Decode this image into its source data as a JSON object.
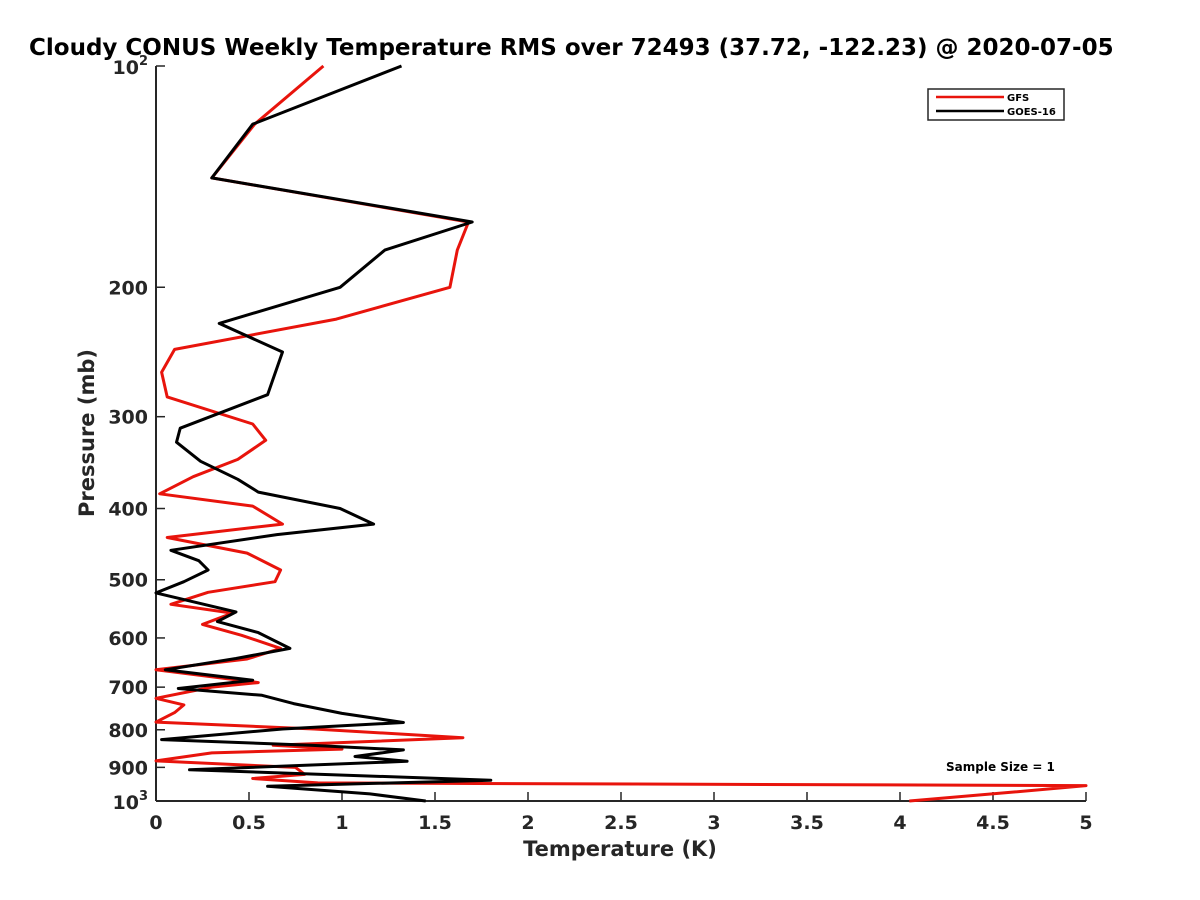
{
  "chart_data": {
    "type": "line",
    "title": "Cloudy CONUS Weekly Temperature RMS over 72493 (37.72, -122.23) @ 2020-07-05",
    "xlabel": "Temperature (K)",
    "ylabel": "Pressure (mb)",
    "xlim": [
      0,
      5
    ],
    "ylim": [
      100,
      1000
    ],
    "y_scale": "log",
    "y_reversed": true,
    "x_ticks": [
      {
        "v": 0,
        "label": "0"
      },
      {
        "v": 0.5,
        "label": "0.5"
      },
      {
        "v": 1,
        "label": "1"
      },
      {
        "v": 1.5,
        "label": "1.5"
      },
      {
        "v": 2,
        "label": "2"
      },
      {
        "v": 2.5,
        "label": "2.5"
      },
      {
        "v": 3,
        "label": "3"
      },
      {
        "v": 3.5,
        "label": "3.5"
      },
      {
        "v": 4,
        "label": "4"
      },
      {
        "v": 4.5,
        "label": "4.5"
      },
      {
        "v": 5,
        "label": "5"
      }
    ],
    "y_ticks": [
      {
        "v": 100,
        "base": "10",
        "exp": "2"
      },
      {
        "v": 200,
        "label": "200"
      },
      {
        "v": 300,
        "label": "300"
      },
      {
        "v": 400,
        "label": "400"
      },
      {
        "v": 500,
        "label": "500"
      },
      {
        "v": 600,
        "label": "600"
      },
      {
        "v": 700,
        "label": "700"
      },
      {
        "v": 800,
        "label": "800"
      },
      {
        "v": 900,
        "label": "900"
      },
      {
        "v": 1000,
        "base": "10",
        "exp": "3"
      }
    ],
    "legend_position": "top-right",
    "annotation": "Sample Size = 1",
    "series": [
      {
        "name": "GFS",
        "color": "#e8140c",
        "points": [
          [
            0.9,
            100
          ],
          [
            0.53,
            120
          ],
          [
            0.3,
            142
          ],
          [
            1.68,
            163
          ],
          [
            1.62,
            178
          ],
          [
            1.58,
            200
          ],
          [
            0.97,
            221
          ],
          [
            0.1,
            243
          ],
          [
            0.03,
            261
          ],
          [
            0.06,
            282
          ],
          [
            0.52,
            307
          ],
          [
            0.59,
            323
          ],
          [
            0.44,
            343
          ],
          [
            0.2,
            362
          ],
          [
            0.02,
            382
          ],
          [
            0.52,
            397
          ],
          [
            0.68,
            420
          ],
          [
            0.06,
            438
          ],
          [
            0.49,
            460
          ],
          [
            0.67,
            485
          ],
          [
            0.64,
            503
          ],
          [
            0.28,
            520
          ],
          [
            0.08,
            540
          ],
          [
            0.41,
            555
          ],
          [
            0.25,
            575
          ],
          [
            0.46,
            595
          ],
          [
            0.67,
            620
          ],
          [
            0.49,
            641
          ],
          [
            0.0,
            663
          ],
          [
            0.55,
            690
          ],
          [
            0.3,
            700
          ],
          [
            0.0,
            725
          ],
          [
            0.15,
            740
          ],
          [
            0.1,
            758
          ],
          [
            0.0,
            781
          ],
          [
            0.85,
            798
          ],
          [
            1.65,
            820
          ],
          [
            0.63,
            840
          ],
          [
            1.0,
            850
          ],
          [
            0.3,
            860
          ],
          [
            0.0,
            882
          ],
          [
            0.75,
            900
          ],
          [
            0.8,
            920
          ],
          [
            0.52,
            932
          ],
          [
            0.87,
            945
          ],
          [
            5.0,
            953
          ],
          [
            4.62,
            972
          ],
          [
            4.05,
            1000
          ]
        ]
      },
      {
        "name": "GOES-16",
        "color": "#000000",
        "points": [
          [
            1.32,
            100
          ],
          [
            0.52,
            120
          ],
          [
            0.3,
            142
          ],
          [
            1.7,
            163
          ],
          [
            1.23,
            178
          ],
          [
            0.99,
            200
          ],
          [
            0.34,
            224
          ],
          [
            0.68,
            245
          ],
          [
            0.6,
            280
          ],
          [
            0.13,
            311
          ],
          [
            0.11,
            325
          ],
          [
            0.24,
            345
          ],
          [
            0.44,
            365
          ],
          [
            0.55,
            380
          ],
          [
            0.99,
            400
          ],
          [
            1.17,
            420
          ],
          [
            0.65,
            434
          ],
          [
            0.08,
            456
          ],
          [
            0.23,
            471
          ],
          [
            0.28,
            485
          ],
          [
            0.15,
            503
          ],
          [
            0.0,
            521
          ],
          [
            0.43,
            553
          ],
          [
            0.33,
            570
          ],
          [
            0.55,
            590
          ],
          [
            0.72,
            620
          ],
          [
            0.43,
            640
          ],
          [
            0.05,
            663
          ],
          [
            0.52,
            685
          ],
          [
            0.12,
            703
          ],
          [
            0.57,
            718
          ],
          [
            0.74,
            737
          ],
          [
            1.0,
            760
          ],
          [
            1.33,
            782
          ],
          [
            0.68,
            798
          ],
          [
            0.03,
            825
          ],
          [
            0.83,
            840
          ],
          [
            1.33,
            852
          ],
          [
            1.07,
            870
          ],
          [
            1.35,
            883
          ],
          [
            0.18,
            907
          ],
          [
            1.8,
            937
          ],
          [
            0.6,
            955
          ],
          [
            1.15,
            978
          ],
          [
            1.45,
            1000
          ]
        ]
      }
    ]
  }
}
